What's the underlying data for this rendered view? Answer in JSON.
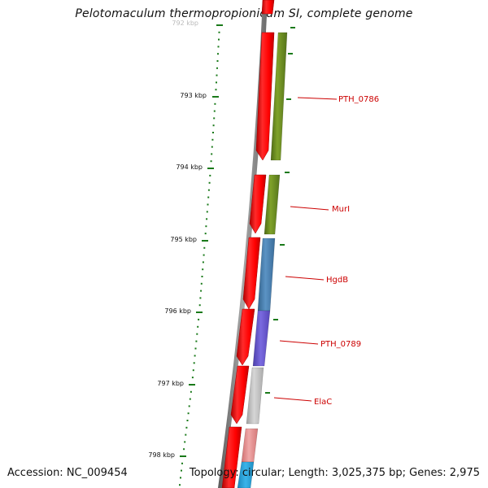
{
  "title": "Pelotomaculum thermopropionicum SI, complete genome",
  "accession_text": "Accession: NC_009454",
  "summary_text": "Topology: circular; Length: 3,025,375 bp; Genes: 2,975",
  "ruler": {
    "partial_top_label": "792 kbp",
    "labels": [
      "793 kbp",
      "794 kbp",
      "795 kbp",
      "796 kbp",
      "797 kbp",
      "798 kbp"
    ],
    "tick_color": "#1a7a1a"
  },
  "genes": [
    {
      "name": "PTH_0786",
      "color": "#6b8e23",
      "label_color": "#cc0000"
    },
    {
      "name": "MurI",
      "color": "#6b8e23",
      "label_color": "#cc0000"
    },
    {
      "name": "HgdB",
      "color": "#4682b4",
      "label_color": "#cc0000"
    },
    {
      "name": "PTH_0789",
      "color": "#6a5acd",
      "label_color": "#cc0000"
    },
    {
      "name": "ElaC",
      "color": "#c0c0c0",
      "label_color": "#cc0000"
    }
  ],
  "colors": {
    "strand_cds": "#ff0000",
    "backbone": "#808080",
    "unnamed_gene_bottom": "#e8a0a0",
    "unnamed_gene_bottom_inner": "#29a3d9"
  }
}
